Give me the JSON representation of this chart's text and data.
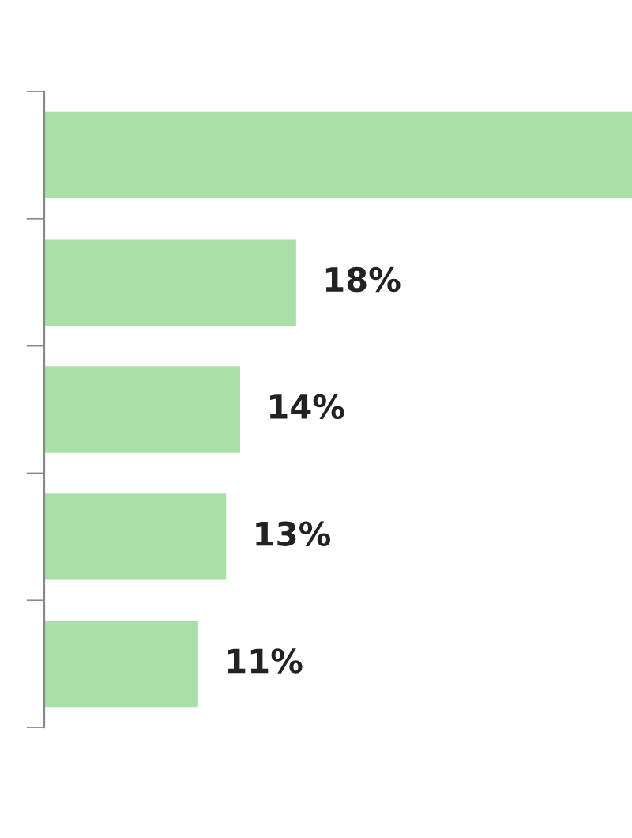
{
  "chart_data": {
    "type": "bar",
    "orientation": "horizontal",
    "categories": [
      null,
      null,
      null,
      null,
      null
    ],
    "values": [
      42,
      18,
      14,
      13,
      11
    ],
    "color": "#a8e0a8",
    "value_labels": [
      null,
      "18%",
      "14%",
      "13%",
      "11%"
    ],
    "xlim": [
      0,
      42
    ],
    "tick_labels": false,
    "grid": false,
    "legend": false
  }
}
